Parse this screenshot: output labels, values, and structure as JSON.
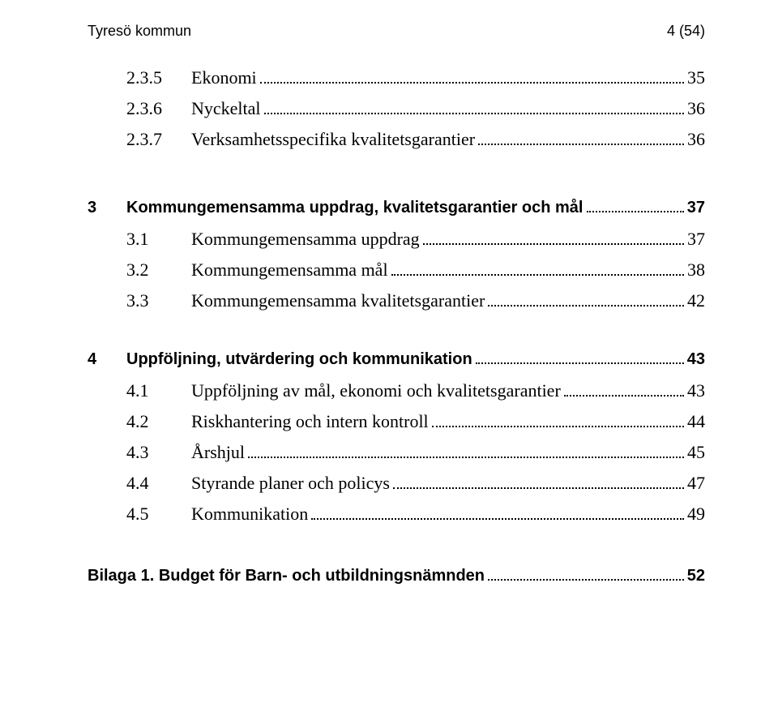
{
  "header": {
    "left": "Tyresö kommun",
    "right": "4 (54)"
  },
  "toc": {
    "group1": [
      {
        "num": "2.3.5",
        "label": "Ekonomi",
        "page": "35"
      },
      {
        "num": "2.3.6",
        "label": "Nyckeltal",
        "page": "36"
      },
      {
        "num": "2.3.7",
        "label": "Verksamhetsspecifika kvalitetsgarantier",
        "page": "36"
      }
    ],
    "section3": {
      "num": "3",
      "label": "Kommungemensamma uppdrag, kvalitetsgarantier och mål",
      "page": "37"
    },
    "group3": [
      {
        "num": "3.1",
        "label": "Kommungemensamma uppdrag",
        "page": "37"
      },
      {
        "num": "3.2",
        "label": "Kommungemensamma mål",
        "page": "38"
      },
      {
        "num": "3.3",
        "label": "Kommungemensamma kvalitetsgarantier",
        "page": "42"
      }
    ],
    "section4": {
      "num": "4",
      "label": "Uppföljning, utvärdering och kommunikation",
      "page": "43"
    },
    "group4": [
      {
        "num": "4.1",
        "label": "Uppföljning av mål, ekonomi och kvalitetsgarantier",
        "page": "43"
      },
      {
        "num": "4.2",
        "label": "Riskhantering och intern kontroll",
        "page": "44"
      },
      {
        "num": "4.3",
        "label": "Årshjul",
        "page": "45"
      },
      {
        "num": "4.4",
        "label": "Styrande planer och policys",
        "page": "47"
      },
      {
        "num": "4.5",
        "label": "Kommunikation",
        "page": "49"
      }
    ],
    "bilaga": {
      "label": "Bilaga 1. Budget för Barn- och utbildningsnämnden",
      "page": "52"
    }
  },
  "style": {
    "page_bg": "#ffffff",
    "text_color": "#000000",
    "body_font": "Garamond",
    "heading_font": "Arial",
    "lvl2_fontsize_pt": 16,
    "lvl1_fontsize_pt": 15,
    "header_fontsize_pt": 13,
    "dot_leader_color": "#000000"
  }
}
